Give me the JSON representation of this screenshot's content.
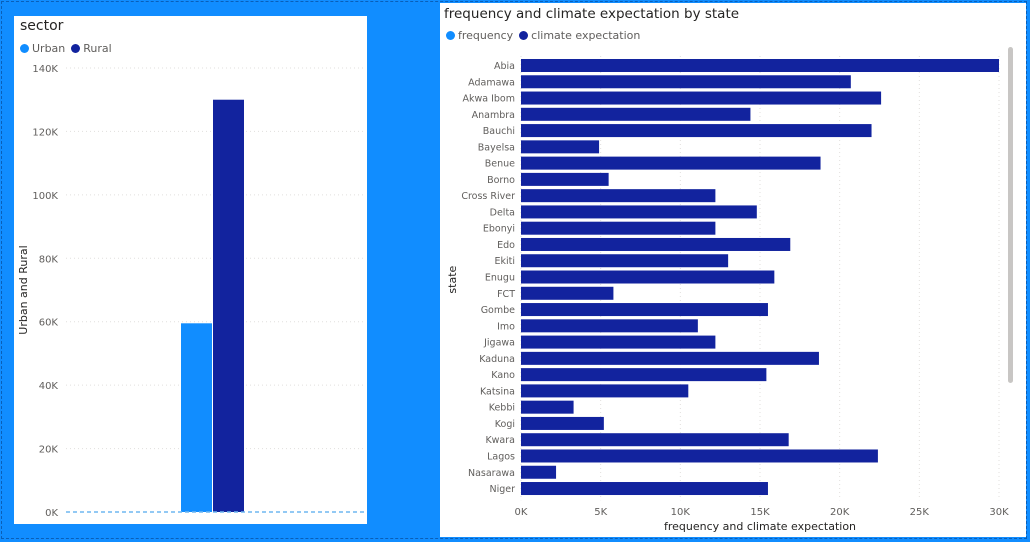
{
  "colors": {
    "urban": "#118dff",
    "rural": "#12239e",
    "frequency": "#118dff",
    "climate_expectation": "#12239e",
    "background": "#118dff",
    "grid": "#e1dfdd",
    "axis_text": "#605e5c"
  },
  "left_visual": {
    "title": "sector",
    "legend": [
      {
        "name": "Urban",
        "color_key": "urban"
      },
      {
        "name": "Rural",
        "color_key": "rural"
      }
    ]
  },
  "right_visual": {
    "title": "frequency and climate expectation by state",
    "legend": [
      {
        "name": "frequency",
        "color_key": "frequency"
      },
      {
        "name": "climate expectation",
        "color_key": "climate_expectation"
      }
    ]
  },
  "chart_data": [
    {
      "type": "bar",
      "orientation": "vertical",
      "title": "sector",
      "ylabel": "Urban and Rural",
      "xlabel": "",
      "ylim": [
        0,
        140000
      ],
      "yticks": [
        0,
        20000,
        40000,
        60000,
        80000,
        100000,
        120000,
        140000
      ],
      "ytick_labels": [
        "0K",
        "20K",
        "40K",
        "60K",
        "80K",
        "100K",
        "120K",
        "140K"
      ],
      "grid": true,
      "legend_position": "top-left",
      "series": [
        {
          "name": "Urban",
          "values": [
            59500
          ]
        },
        {
          "name": "Rural",
          "values": [
            130000
          ]
        }
      ]
    },
    {
      "type": "bar",
      "orientation": "horizontal",
      "title": "frequency and climate expectation by state",
      "xlabel": "frequency and climate expectation",
      "ylabel": "state",
      "xlim": [
        0,
        30000
      ],
      "xticks": [
        0,
        5000,
        10000,
        15000,
        20000,
        25000,
        30000
      ],
      "xtick_labels": [
        "0K",
        "5K",
        "10K",
        "15K",
        "20K",
        "25K",
        "30K"
      ],
      "grid": true,
      "legend_position": "top-left",
      "categories": [
        "Abia",
        "Adamawa",
        "Akwa Ibom",
        "Anambra",
        "Bauchi",
        "Bayelsa",
        "Benue",
        "Borno",
        "Cross River",
        "Delta",
        "Ebonyi",
        "Edo",
        "Ekiti",
        "Enugu",
        "FCT",
        "Gombe",
        "Imo",
        "Jigawa",
        "Kaduna",
        "Kano",
        "Katsina",
        "Kebbi",
        "Kogi",
        "Kwara",
        "Lagos",
        "Nasarawa",
        "Niger"
      ],
      "series": [
        {
          "name": "climate expectation",
          "values": [
            30000,
            20700,
            22600,
            14400,
            22000,
            4900,
            18800,
            5500,
            12200,
            14800,
            12200,
            16900,
            13000,
            15900,
            5800,
            15500,
            11100,
            12200,
            18700,
            15400,
            10500,
            3300,
            5200,
            16800,
            22400,
            2200,
            15500
          ]
        }
      ]
    }
  ]
}
